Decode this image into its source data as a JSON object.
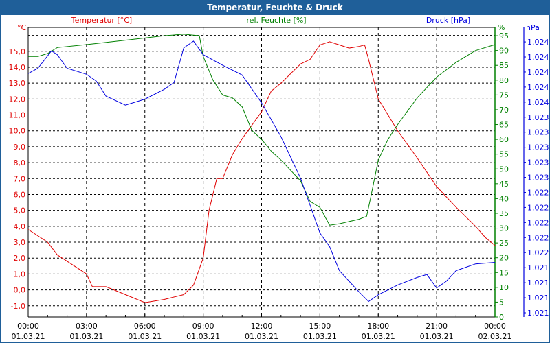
{
  "window": {
    "title": "Temperatur, Feuchte & Druck"
  },
  "chart_data": {
    "type": "line",
    "title": "Temperatur, Feuchte & Druck",
    "x_unit": "hours since 01.03.21 00:00",
    "xlim": [
      0,
      24
    ],
    "x_ticks": [
      {
        "time": "00:00",
        "date": "01.03.21"
      },
      {
        "time": "03:00",
        "date": "01.03.21"
      },
      {
        "time": "06:00",
        "date": "01.03.21"
      },
      {
        "time": "09:00",
        "date": "01.03.21"
      },
      {
        "time": "12:00",
        "date": "01.03.21"
      },
      {
        "time": "15:00",
        "date": "01.03.21"
      },
      {
        "time": "18:00",
        "date": "01.03.21"
      },
      {
        "time": "21:00",
        "date": "01.03.21"
      },
      {
        "time": "00:00",
        "date": "02.03.21"
      }
    ],
    "grid": true,
    "axes": {
      "temperature": {
        "label": "Temperatur [°C]",
        "unit": "°C",
        "color": "#e00000",
        "ylim": [
          -1.7,
          16.5
        ],
        "ticks": [
          "-1,0",
          "0,0",
          "1,0",
          "2,0",
          "3,0",
          "4,0",
          "5,0",
          "6,0",
          "7,0",
          "8,0",
          "9,0",
          "10,0",
          "11,0",
          "12,0",
          "13,0",
          "14,0",
          "15,0"
        ]
      },
      "humidity": {
        "label": "rel. Feuchte [%]",
        "unit": "%",
        "color": "#008000",
        "ylim": [
          0,
          97.8
        ],
        "ticks": [
          "0",
          "5",
          "10",
          "15",
          "20",
          "25",
          "30",
          "35",
          "40",
          "45",
          "50",
          "55",
          "60",
          "65",
          "70",
          "75",
          "80",
          "85",
          "90",
          "95"
        ]
      },
      "pressure": {
        "label": "Druck [hPa]",
        "unit": "hPa",
        "color": "#0000e0",
        "ticks": [
          "1.021",
          "1.021",
          "1.021",
          "1.021",
          "1.022",
          "1.022",
          "1.022",
          "1.022",
          "1.022",
          "1.023",
          "1.023",
          "1.023",
          "1.023",
          "1.023",
          "1.024",
          "1.024",
          "1.024",
          "1.024",
          "1.024"
        ]
      }
    },
    "series": [
      {
        "name": "Temperatur",
        "axis": "temperature",
        "color": "#e00000",
        "x": [
          0,
          1,
          1.5,
          2,
          3,
          3.3,
          4,
          5,
          6,
          7,
          8,
          8.5,
          9,
          9.3,
          9.7,
          10,
          10.5,
          11,
          12,
          12.5,
          13,
          14,
          14.5,
          15,
          15.5,
          16,
          16.5,
          17,
          17.3,
          17.5,
          18,
          19,
          20,
          21,
          22,
          23,
          23.5,
          24
        ],
        "y": [
          3.8,
          3.0,
          2.2,
          1.8,
          1.0,
          0.2,
          0.2,
          -0.3,
          -0.8,
          -0.6,
          -0.3,
          0.3,
          2.0,
          5.0,
          7.0,
          7.0,
          8.5,
          9.5,
          11.2,
          12.5,
          13.0,
          14.2,
          14.5,
          15.4,
          15.6,
          15.4,
          15.2,
          15.3,
          15.4,
          14.5,
          12.0,
          10.0,
          8.3,
          6.5,
          5.2,
          4.0,
          3.3,
          2.8
        ]
      },
      {
        "name": "rel. Feuchte",
        "axis": "humidity",
        "color": "#008000",
        "x": [
          0,
          0.5,
          1,
          1.5,
          3,
          5,
          7,
          8,
          8.8,
          9,
          9.5,
          10,
          10.5,
          11,
          11.5,
          12,
          12.5,
          13,
          14,
          14.5,
          15,
          15.5,
          16,
          17,
          17.4,
          17.6,
          18,
          18.5,
          19,
          20,
          21,
          22,
          23,
          24
        ],
        "y": [
          88,
          88,
          89,
          91,
          92,
          93.5,
          95,
          95.5,
          95,
          88,
          80,
          75,
          74,
          71,
          63,
          60,
          56,
          53,
          46,
          39,
          37,
          31,
          31.5,
          33,
          34,
          40,
          53,
          60,
          65,
          74,
          81,
          86,
          90,
          92
        ]
      },
      {
        "name": "Druck",
        "axis": "pressure",
        "color": "#0000e0",
        "x": [
          0,
          0.5,
          1.2,
          1.5,
          2,
          3,
          3.5,
          4,
          5,
          6,
          7,
          7.5,
          8,
          8.5,
          9,
          10,
          11,
          12,
          13,
          14,
          15,
          15.5,
          16,
          17,
          17.5,
          18,
          19,
          20,
          20.5,
          21,
          21.5,
          22,
          23,
          24
        ],
        "y": [
          1.02388,
          1.02395,
          1.02418,
          1.02413,
          1.02395,
          1.02387,
          1.02378,
          1.02358,
          1.02346,
          1.02354,
          1.02367,
          1.02376,
          1.02422,
          1.02431,
          1.02413,
          1.02399,
          1.02386,
          1.02349,
          1.02304,
          1.02249,
          1.02176,
          1.02158,
          1.02126,
          1.02098,
          1.02085,
          1.02094,
          1.02107,
          1.02117,
          1.02121,
          1.02103,
          1.02112,
          1.02126,
          1.02135,
          1.02137
        ]
      }
    ]
  }
}
